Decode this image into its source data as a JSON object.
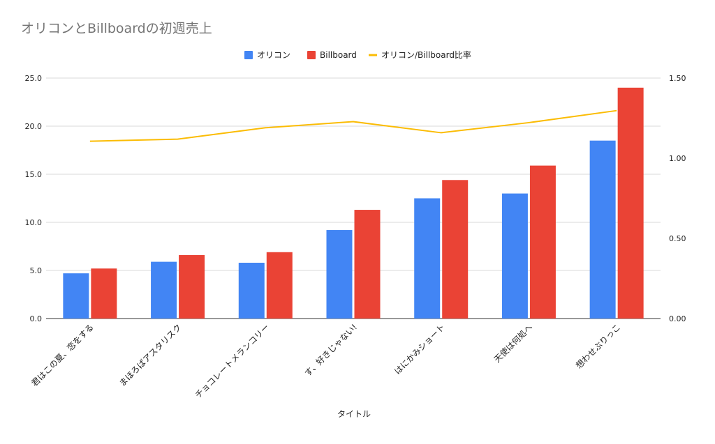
{
  "chart_data": {
    "type": "bar",
    "title": "オリコンとBillboardの初週売上",
    "xlabel": "タイトル",
    "categories": [
      "君はこの夏、恋をする",
      "まほろばアスタリスク",
      "チョコレートメランコリー",
      "す、好きじゃない!",
      "はにかみショート",
      "天使は何処へ",
      "想わせぶりっこ"
    ],
    "series": [
      {
        "name": "オリコン",
        "type": "bar",
        "axis": "left",
        "color": "#4285f4",
        "values": [
          4.7,
          5.9,
          5.8,
          9.2,
          12.5,
          13.0,
          18.5
        ]
      },
      {
        "name": "Billboard",
        "type": "bar",
        "axis": "left",
        "color": "#ea4335",
        "values": [
          5.2,
          6.6,
          6.9,
          11.3,
          14.4,
          15.9,
          24.0
        ]
      },
      {
        "name": "オリコン/Billboard比率",
        "type": "line",
        "axis": "right",
        "color": "#fbbc04",
        "values": [
          1.106,
          1.119,
          1.19,
          1.228,
          1.159,
          1.222,
          1.297
        ]
      }
    ],
    "ylim": [
      0,
      25
    ],
    "y2lim": [
      0,
      1.5
    ],
    "yticks": [
      "0.0",
      "5.0",
      "10.0",
      "15.0",
      "20.0",
      "25.0"
    ],
    "y2ticks": [
      "0.00",
      "0.50",
      "1.00",
      "1.50"
    ],
    "grid": true,
    "legend_position": "top-center"
  }
}
